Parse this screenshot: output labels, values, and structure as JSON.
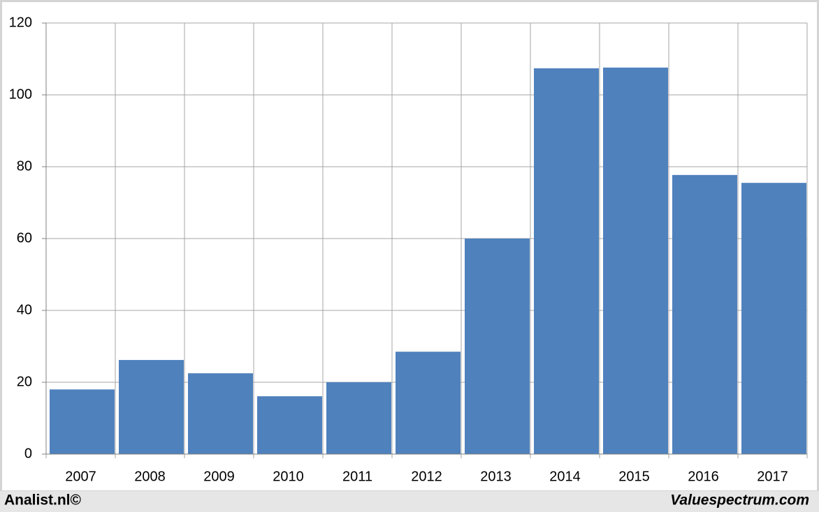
{
  "chart_data": {
    "type": "bar",
    "categories": [
      "2007",
      "2008",
      "2009",
      "2010",
      "2011",
      "2012",
      "2013",
      "2014",
      "2015",
      "2016",
      "2017"
    ],
    "values": [
      18,
      26.2,
      22.5,
      16.1,
      20,
      28.5,
      60,
      107.4,
      107.6,
      77.7,
      75.5
    ],
    "color": "#4f81bd",
    "ylim": [
      0,
      120
    ],
    "yticks": [
      0,
      20,
      40,
      60,
      80,
      100,
      120
    ],
    "grid": true
  },
  "footer": {
    "left": "Analist.nl©",
    "right": "Valuespectrum.com"
  }
}
